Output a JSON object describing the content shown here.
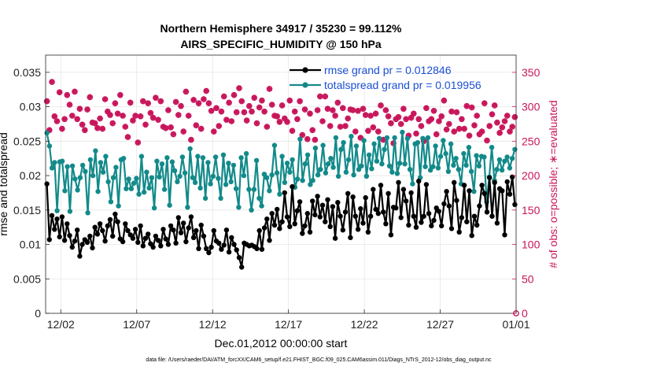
{
  "chart_data": {
    "type": "line",
    "title_line1": "Northern Hemisphere 34917 / 35230 = 99.112%",
    "title_line2": "AIRS_SPECIFIC_HUMIDITY @ 150 hPa",
    "xlabel": "Dec.01,2012 00:00:00 start",
    "ylabel_left": "rmse and totalspread",
    "ylabel_right": "# of obs: o=possible; ∗=evaluated",
    "footer": "data file: /Users/raeder/DAI/ATM_forcXX/CAM6_setup/f.e21.FHIST_BGC.f09_025.CAM6assim.011/Diags_NTrS_2012-12/obs_diag_output.nc",
    "x_ticks": [
      "12/02",
      "12/07",
      "12/12",
      "12/17",
      "12/22",
      "12/27",
      "01/01"
    ],
    "x_tick_days": [
      1,
      6,
      11,
      16,
      21,
      26,
      31
    ],
    "xlim_days": [
      0,
      31
    ],
    "y_left_ticks": [
      "0",
      "0.005",
      "0.01",
      "0.015",
      "0.02",
      "0.025",
      "0.03",
      "0.035"
    ],
    "y_left_lim": [
      0,
      0.0375
    ],
    "y_right_ticks": [
      "0",
      "50",
      "100",
      "150",
      "200",
      "250",
      "300",
      "350"
    ],
    "y_right_lim": [
      0,
      375
    ],
    "grid": true,
    "legend_placement": "top-right",
    "series": [
      {
        "name": "rmse grand pr = 0.012846",
        "axis": "left",
        "color": "#000000",
        "values": [
          0.0188,
          0.0107,
          0.0142,
          0.0122,
          0.0137,
          0.0111,
          0.014,
          0.0106,
          0.013,
          0.0113,
          0.0096,
          0.0105,
          0.0121,
          0.0083,
          0.01,
          0.0107,
          0.0103,
          0.0112,
          0.0095,
          0.0125,
          0.0115,
          0.013,
          0.012,
          0.0105,
          0.0127,
          0.0136,
          0.0112,
          0.0144,
          0.0133,
          0.0108,
          0.0104,
          0.013,
          0.012,
          0.0114,
          0.0109,
          0.0122,
          0.0103,
          0.0127,
          0.0098,
          0.0109,
          0.0115,
          0.0101,
          0.0096,
          0.0112,
          0.0106,
          0.0098,
          0.0122,
          0.0108,
          0.01,
          0.0127,
          0.0121,
          0.0102,
          0.0139,
          0.0117,
          0.0131,
          0.0104,
          0.0124,
          0.014,
          0.011,
          0.012,
          0.0094,
          0.0128,
          0.0112,
          0.0094,
          0.0088,
          0.0096,
          0.012,
          0.0105,
          0.0102,
          0.0093,
          0.0099,
          0.0121,
          0.0089,
          0.011,
          0.01,
          0.0092,
          0.0081,
          0.0067,
          0.0102,
          0.01,
          0.0098,
          0.0099,
          0.0097,
          0.0094,
          0.012,
          0.0093,
          0.0124,
          0.0137,
          0.0106,
          0.0145,
          0.0128,
          0.0151,
          0.0123,
          0.0133,
          0.0175,
          0.014,
          0.0126,
          0.0184,
          0.013,
          0.0149,
          0.0162,
          0.0116,
          0.0127,
          0.0145,
          0.0118,
          0.0163,
          0.0143,
          0.017,
          0.014,
          0.0157,
          0.0133,
          0.0165,
          0.0126,
          0.0155,
          0.0109,
          0.0161,
          0.0141,
          0.0121,
          0.0147,
          0.0174,
          0.011,
          0.0169,
          0.0141,
          0.0122,
          0.0152,
          0.0131,
          0.0168,
          0.0118,
          0.0141,
          0.018,
          0.0151,
          0.0145,
          0.0186,
          0.0147,
          0.013,
          0.0174,
          0.0114,
          0.0154,
          0.0153,
          0.019,
          0.0139,
          0.018,
          0.0163,
          0.0128,
          0.0175,
          0.0141,
          0.0125,
          0.0192,
          0.0132,
          0.0141,
          0.0187,
          0.0145,
          0.0127,
          0.0135,
          0.0153,
          0.0148,
          0.0127,
          0.0159,
          0.0177,
          0.0156,
          0.0123,
          0.019,
          0.0164,
          0.0118,
          0.0139,
          0.0186,
          0.0133,
          0.0178,
          0.0113,
          0.0141,
          0.0128,
          0.0156,
          0.0186,
          0.0174,
          0.0147,
          0.0197,
          0.0141,
          0.019,
          0.0131,
          0.0181,
          0.0178,
          0.0114,
          0.0191,
          0.0173,
          0.0198,
          0.0158
        ]
      },
      {
        "name": "totalspread grand pr = 0.019956",
        "axis": "left",
        "color": "#138a8a",
        "values": [
          0.0262,
          0.0243,
          0.0211,
          0.0219,
          0.0149,
          0.022,
          0.0221,
          0.0178,
          0.0213,
          0.0148,
          0.0214,
          0.0195,
          0.0179,
          0.0197,
          0.0215,
          0.0206,
          0.0146,
          0.0223,
          0.02,
          0.0236,
          0.0177,
          0.0219,
          0.0205,
          0.0228,
          0.0191,
          0.0162,
          0.0197,
          0.0212,
          0.0156,
          0.0223,
          0.0225,
          0.0181,
          0.0195,
          0.0181,
          0.0189,
          0.0196,
          0.0173,
          0.0228,
          0.0176,
          0.0205,
          0.0182,
          0.0197,
          0.0153,
          0.0221,
          0.0198,
          0.0217,
          0.018,
          0.0226,
          0.0157,
          0.022,
          0.0207,
          0.0191,
          0.0199,
          0.0227,
          0.0204,
          0.0154,
          0.0239,
          0.0197,
          0.019,
          0.0228,
          0.0182,
          0.0226,
          0.0167,
          0.0219,
          0.0188,
          0.0199,
          0.0227,
          0.0196,
          0.0167,
          0.023,
          0.0187,
          0.0218,
          0.0191,
          0.0215,
          0.0181,
          0.0154,
          0.0226,
          0.02,
          0.0232,
          0.018,
          0.015,
          0.018,
          0.0222,
          0.0167,
          0.0156,
          0.0202,
          0.0197,
          0.0178,
          0.0201,
          0.0244,
          0.0204,
          0.0173,
          0.0228,
          0.019,
          0.0218,
          0.0205,
          0.0223,
          0.0183,
          0.0195,
          0.0253,
          0.0193,
          0.0217,
          0.023,
          0.0187,
          0.0193,
          0.024,
          0.0201,
          0.0209,
          0.0244,
          0.0204,
          0.0217,
          0.0225,
          0.0212,
          0.0255,
          0.0199,
          0.0238,
          0.0248,
          0.0205,
          0.0223,
          0.0257,
          0.0201,
          0.0243,
          0.0209,
          0.0214,
          0.0251,
          0.0199,
          0.023,
          0.021,
          0.0246,
          0.0221,
          0.0254,
          0.0217,
          0.0238,
          0.0255,
          0.0214,
          0.0205,
          0.0255,
          0.0203,
          0.0218,
          0.0263,
          0.0217,
          0.0254,
          0.0209,
          0.0188,
          0.0246,
          0.0248,
          0.0197,
          0.0254,
          0.0213,
          0.0255,
          0.0208,
          0.0213,
          0.0243,
          0.0211,
          0.0228,
          0.0251,
          0.0232,
          0.0206,
          0.0246,
          0.0215,
          0.0225,
          0.0209,
          0.0188,
          0.0232,
          0.0215,
          0.0241,
          0.0206,
          0.0177,
          0.0229,
          0.0214,
          0.0228,
          0.0227,
          0.0162,
          0.0198,
          0.0241,
          0.0193,
          0.0209,
          0.0223,
          0.0208,
          0.0221,
          0.0227,
          0.0211,
          0.0225,
          0.0238
        ]
      },
      {
        "name": "possible obs",
        "axis": "right",
        "color": "#c8145a",
        "marker": "circle",
        "values": [
          308,
          266,
          336,
          286,
          279,
          321,
          268,
          282,
          317,
          303,
          287,
          322,
          282,
          297,
          274,
          266,
          296,
          314,
          277,
          276,
          269,
          283,
          268,
          311,
          293,
          288,
          276,
          305,
          290,
          317,
          287,
          271,
          256,
          306,
          280,
          287,
          248,
          286,
          308,
          274,
          305,
          291,
          284,
          313,
          281,
          308,
          271,
          269,
          295,
          270,
          260,
          307,
          288,
          301,
          264,
          322,
          287,
          252,
          310,
          273,
          305,
          268,
          311,
          323,
          305,
          294,
          264,
          298,
          272,
          293,
          315,
          281,
          306,
          279,
          317,
          292,
          327,
          308,
          292,
          280,
          301,
          293,
          313,
          276,
          299,
          309,
          293,
          271,
          326,
          303,
          287,
          286,
          278,
          302,
          283,
          278,
          309,
          265,
          293,
          282,
          308,
          259,
          296,
          253,
          290,
          266,
          252,
          295,
          315,
          279,
          315,
          297,
          272,
          295,
          287,
          306,
          271,
          298,
          272,
          283,
          296,
          295,
          264,
          294,
          255,
          297,
          288,
          265,
          287,
          270,
          290,
          264,
          302,
          252,
          295,
          286,
          276,
          247,
          282,
          285,
          275,
          297,
          282,
          258,
          284,
          290,
          261,
          282,
          272,
          250,
          298,
          279,
          282,
          294,
          260,
          279,
          286,
          309,
          267,
          275,
          293,
          264,
          292,
          268,
          282,
          268,
          301,
          258,
          299,
          273,
          287,
          260,
          264,
          305,
          251,
          272,
          289,
          302,
          277,
          262,
          270,
          279,
          287,
          264,
          271,
          285
        ]
      },
      {
        "name": "evaluated obs",
        "axis": "right",
        "color": "#c8145a",
        "marker": "asterisk",
        "values": [
          308,
          266,
          336,
          286,
          279,
          321,
          268,
          282,
          317,
          303,
          287,
          322,
          282,
          297,
          274,
          266,
          296,
          314,
          277,
          276,
          269,
          283,
          268,
          311,
          293,
          288,
          276,
          305,
          290,
          317,
          287,
          271,
          256,
          306,
          280,
          287,
          248,
          286,
          308,
          274,
          305,
          291,
          284,
          313,
          281,
          308,
          271,
          269,
          295,
          270,
          260,
          307,
          288,
          301,
          264,
          322,
          287,
          252,
          310,
          273,
          305,
          268,
          311,
          323,
          305,
          294,
          264,
          298,
          272,
          293,
          315,
          281,
          306,
          279,
          317,
          292,
          327,
          308,
          292,
          280,
          301,
          293,
          313,
          276,
          299,
          309,
          293,
          271,
          326,
          303,
          287,
          286,
          278,
          302,
          283,
          278,
          309,
          265,
          293,
          282,
          308,
          259,
          296,
          253,
          290,
          266,
          252,
          295,
          315,
          279,
          315,
          297,
          272,
          295,
          287,
          306,
          271,
          298,
          272,
          283,
          296,
          295,
          264,
          294,
          255,
          297,
          288,
          265,
          287,
          270,
          290,
          264,
          302,
          252,
          295,
          286,
          276,
          247,
          282,
          285,
          275,
          297,
          282,
          258,
          284,
          290,
          261,
          282,
          272,
          250,
          298,
          279,
          282,
          294,
          260,
          279,
          286,
          309,
          267,
          275,
          293,
          264,
          292,
          268,
          282,
          268,
          301,
          258,
          299,
          273,
          287,
          260,
          264,
          305,
          251,
          272,
          289,
          302,
          277,
          262,
          270,
          279,
          287,
          264,
          271,
          285
        ]
      }
    ]
  }
}
